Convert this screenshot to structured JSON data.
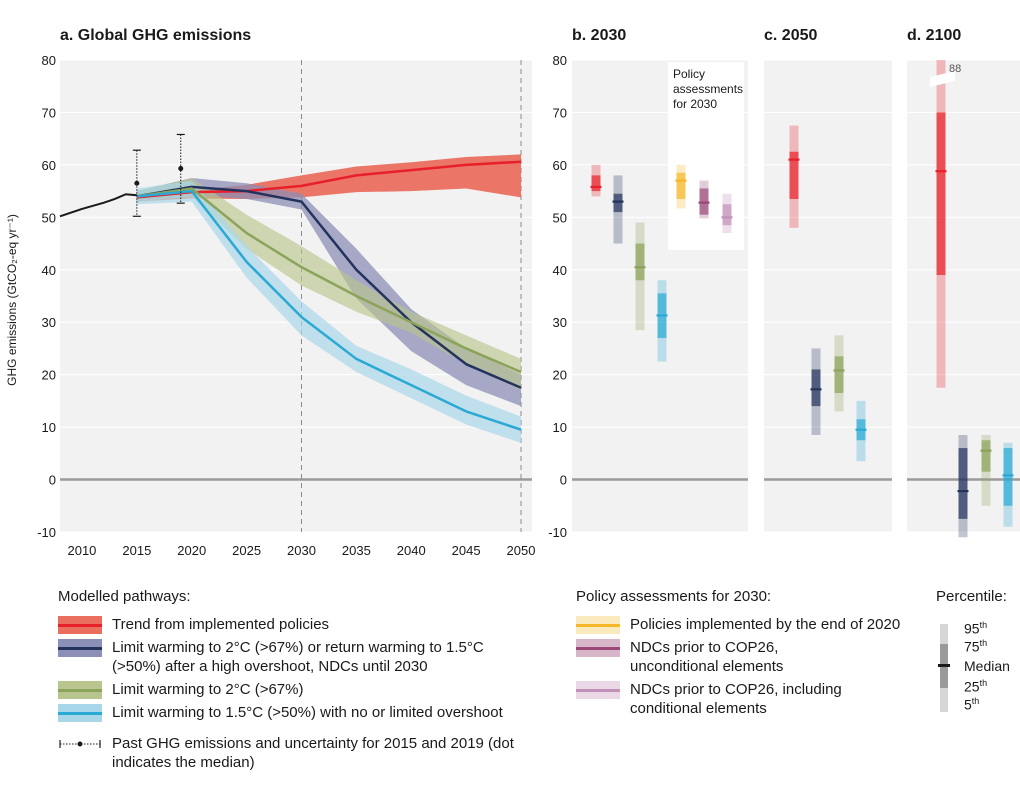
{
  "panel_titles": {
    "a": "a. Global GHG emissions",
    "b": "b. 2030",
    "c": "c. 2050",
    "d": "d. 2100"
  },
  "y_axis_label": "GHG emissions (GtCO₂-eq yr⁻¹)",
  "policy_note": [
    "Policy",
    "assessments",
    "for 2030"
  ],
  "overflow_label": "88",
  "colors": {
    "red": "#e8202a",
    "red_band": "#ea6f5f",
    "navy": "#24335e",
    "navy_band": "#8c8fb6",
    "green": "#8ba35a",
    "green_band": "#b9c58e",
    "cyan": "#2aa9d4",
    "cyan_band": "#a9d7ea",
    "yellow": "#f5b82a",
    "plum": "#9b4878",
    "pink": "#c390b8",
    "panel_bg": "#f2f2f2",
    "zero_line": "#9a9a9a",
    "grid": "#ffffff"
  },
  "legend": {
    "modelled_title": "Modelled pathways:",
    "modelled": [
      {
        "key": "red",
        "text": "Trend from implemented policies"
      },
      {
        "key": "navy",
        "text": "Limit warming to 2°C (>67%) or return warming to 1.5°C (>50%) after a high overshoot, NDCs until 2030"
      },
      {
        "key": "green",
        "text": "Limit warming to 2°C (>67%)"
      },
      {
        "key": "cyan",
        "text": "Limit warming to 1.5°C (>50%) with no or limited overshoot"
      }
    ],
    "past": "Past GHG emissions and uncertainty for 2015 and 2019 (dot indicates the median)",
    "policy_title": "Policy assessments for 2030:",
    "policy": [
      {
        "key": "yellow",
        "text": "Policies implemented by the end of 2020"
      },
      {
        "key": "plum",
        "text": "NDCs prior to COP26, unconditional elements"
      },
      {
        "key": "pink",
        "text": "NDCs prior to COP26, including conditional elements"
      }
    ],
    "percentile_title": "Percentile:",
    "percentiles": [
      {
        "sup": "th",
        "num": "95"
      },
      {
        "sup": "th",
        "num": "75"
      },
      {
        "sup": "",
        "num": "Median"
      },
      {
        "sup": "th",
        "num": "25"
      },
      {
        "sup": "th",
        "num": "5"
      }
    ]
  },
  "chart_data": [
    {
      "type": "line",
      "title": "a. Global GHG emissions",
      "ylabel": "GHG emissions (GtCO₂-eq yr⁻¹)",
      "xlim": [
        2008,
        2051
      ],
      "ylim": [
        -10,
        80
      ],
      "x_ticks": [
        2010,
        2015,
        2020,
        2025,
        2030,
        2035,
        2040,
        2045,
        2050
      ],
      "y_ticks": [
        -10,
        0,
        10,
        20,
        30,
        40,
        50,
        60,
        70,
        80
      ],
      "grid": true,
      "historical": {
        "x": [
          2008,
          2010,
          2012,
          2013,
          2014,
          2015
        ],
        "y": [
          50.2,
          51.6,
          52.8,
          53.5,
          54.4,
          54.2
        ]
      },
      "past_uncertainty": [
        {
          "x": 2015,
          "median": 56.5,
          "low": 50.2,
          "high": 62.8
        },
        {
          "x": 2019,
          "median": 59.3,
          "low": 52.7,
          "high": 65.8
        }
      ],
      "series": [
        {
          "name": "Trend from implemented policies",
          "key": "red",
          "x": [
            2015,
            2020,
            2025,
            2030,
            2035,
            2040,
            2045,
            2050
          ],
          "median": [
            53.8,
            54.8,
            55.0,
            56.0,
            58.0,
            59.0,
            60.0,
            60.6
          ],
          "low": [
            53.0,
            53.6,
            53.5,
            53.8,
            54.8,
            55.0,
            55.5,
            53.8
          ],
          "high": [
            54.5,
            55.2,
            56.2,
            58.0,
            59.7,
            60.5,
            61.5,
            62.0
          ]
        },
        {
          "name": "Limit warming to 2°C (>67%) or return warming to 1.5°C (>50%) after a high overshoot, NDCs until 2030",
          "key": "navy",
          "x": [
            2015,
            2020,
            2025,
            2030,
            2035,
            2040,
            2045,
            2050
          ],
          "median": [
            54.0,
            55.8,
            55.0,
            53.0,
            40.0,
            30.0,
            22.0,
            17.5
          ],
          "low": [
            53.0,
            54.2,
            53.5,
            51.5,
            34.5,
            24.5,
            18.0,
            14.0
          ],
          "high": [
            55.0,
            57.5,
            56.5,
            54.5,
            44.0,
            32.5,
            25.0,
            20.0
          ]
        },
        {
          "name": "Limit warming to 2°C (>67%)",
          "key": "green",
          "x": [
            2015,
            2020,
            2025,
            2030,
            2035,
            2040,
            2045,
            2050
          ],
          "median": [
            54.0,
            55.5,
            47.0,
            40.5,
            35.0,
            30.0,
            25.0,
            20.5
          ],
          "low": [
            53.0,
            54.0,
            44.0,
            37.0,
            32.0,
            28.0,
            22.0,
            17.0
          ],
          "high": [
            55.0,
            57.5,
            50.5,
            44.5,
            38.0,
            32.0,
            27.5,
            23.0
          ]
        },
        {
          "name": "Limit warming to 1.5°C (>50%) with no or limited overshoot",
          "key": "cyan",
          "x": [
            2015,
            2020,
            2025,
            2030,
            2035,
            2040,
            2045,
            2050
          ],
          "median": [
            54.0,
            55.0,
            41.5,
            31.0,
            23.0,
            18.0,
            13.0,
            9.5
          ],
          "low": [
            52.5,
            53.0,
            38.5,
            27.5,
            20.5,
            15.5,
            10.5,
            7.0
          ],
          "high": [
            55.5,
            57.0,
            44.5,
            34.0,
            25.5,
            21.0,
            16.0,
            12.0
          ]
        }
      ]
    },
    {
      "type": "box",
      "title": "b. 2030",
      "ylim": [
        -10,
        80
      ],
      "bars": [
        {
          "key": "red",
          "p5": 54.0,
          "p25": 55.0,
          "median": 55.8,
          "p75": 58.0,
          "p95": 60.0
        },
        {
          "key": "navy",
          "p5": 45.0,
          "p25": 51.0,
          "median": 53.0,
          "p75": 54.5,
          "p95": 58.0
        },
        {
          "key": "green",
          "p5": 28.5,
          "p25": 38.0,
          "median": 40.5,
          "p75": 45.0,
          "p95": 49.0
        },
        {
          "key": "cyan",
          "p5": 22.5,
          "p25": 27.0,
          "median": 31.3,
          "p75": 35.5,
          "p95": 38.0
        },
        {
          "key": "yellow",
          "p5": 51.7,
          "p25": 53.5,
          "median": 57.0,
          "p75": 58.5,
          "p95": 60.0
        },
        {
          "key": "plum",
          "p5": 49.8,
          "p25": 50.5,
          "median": 52.8,
          "p75": 55.5,
          "p95": 57.0
        },
        {
          "key": "pink",
          "p5": 47.0,
          "p25": 48.5,
          "median": 50.0,
          "p75": 52.5,
          "p95": 54.5
        }
      ]
    },
    {
      "type": "box",
      "title": "c. 2050",
      "ylim": [
        -10,
        80
      ],
      "bars": [
        {
          "key": "red",
          "p5": 48.0,
          "p25": 53.5,
          "median": 61.0,
          "p75": 62.5,
          "p95": 67.5
        },
        {
          "key": "navy",
          "p5": 8.5,
          "p25": 14.0,
          "median": 17.2,
          "p75": 21.0,
          "p95": 25.0
        },
        {
          "key": "green",
          "p5": 13.0,
          "p25": 16.5,
          "median": 20.8,
          "p75": 23.5,
          "p95": 27.5
        },
        {
          "key": "cyan",
          "p5": 3.5,
          "p25": 7.5,
          "median": 9.5,
          "p75": 11.5,
          "p95": 15.0
        }
      ]
    },
    {
      "type": "box",
      "title": "d. 2100",
      "ylim": [
        -10,
        80
      ],
      "bars": [
        {
          "key": "red",
          "p5": 17.5,
          "p25": 39.0,
          "median": 58.8,
          "p75": 70.0,
          "p95": 88.0
        },
        {
          "key": "navy",
          "p5": -11.0,
          "p25": -7.5,
          "median": -2.2,
          "p75": 6.0,
          "p95": 8.5
        },
        {
          "key": "green",
          "p5": -5.0,
          "p25": 1.5,
          "median": 5.5,
          "p75": 7.5,
          "p95": 8.5
        },
        {
          "key": "cyan",
          "p5": -9.0,
          "p25": -5.0,
          "median": 0.8,
          "p75": 6.0,
          "p95": 7.0
        }
      ]
    }
  ]
}
